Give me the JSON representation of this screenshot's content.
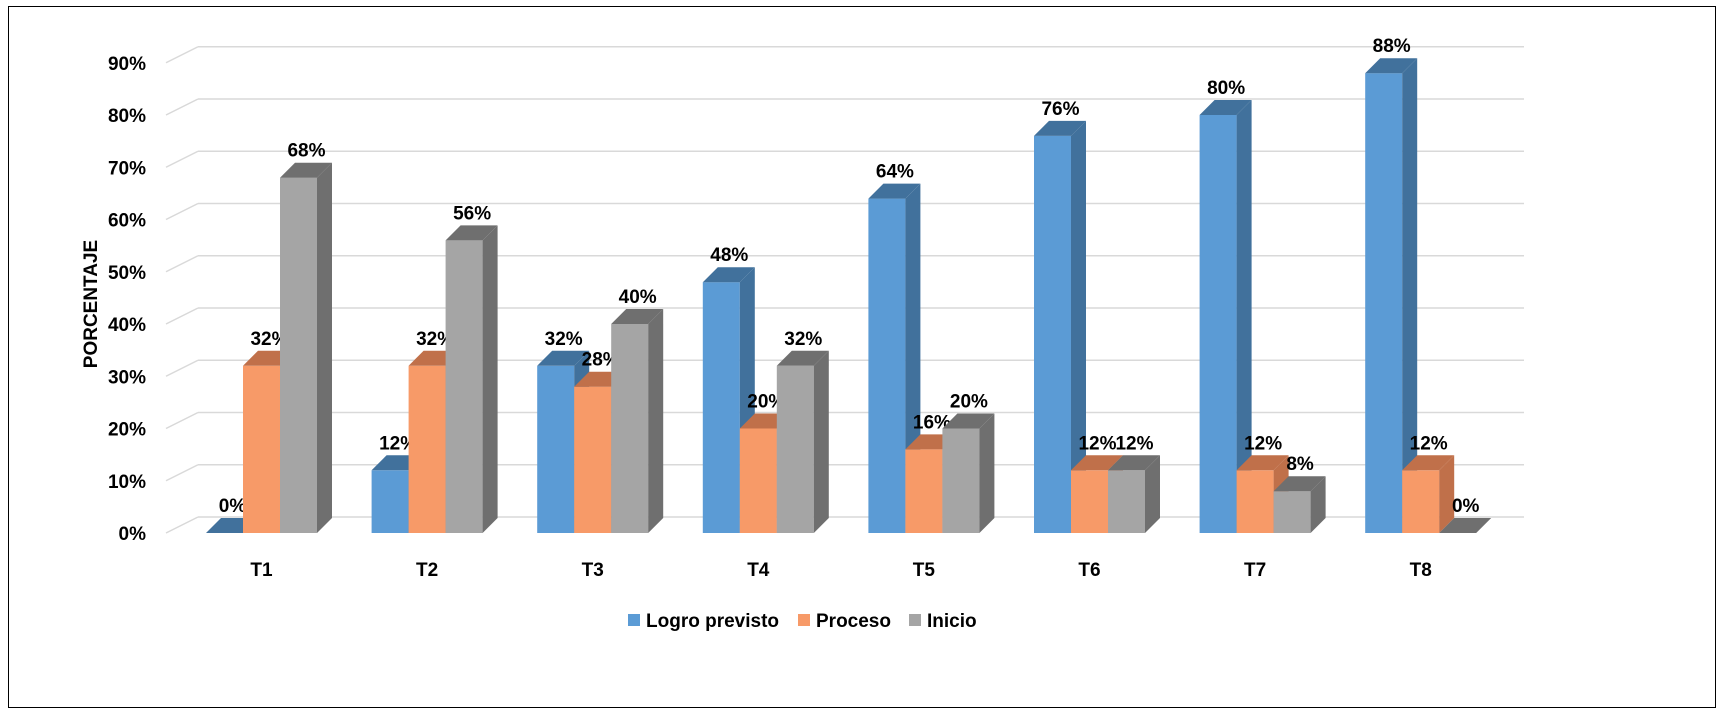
{
  "chart_data": {
    "type": "bar",
    "style": "3d-clustered-column",
    "categories": [
      "T1",
      "T2",
      "T3",
      "T4",
      "T5",
      "T6",
      "T7",
      "T8"
    ],
    "series": [
      {
        "name": "Logro previsto",
        "values": [
          0,
          12,
          32,
          48,
          64,
          76,
          80,
          88
        ],
        "color": "#5B9BD5",
        "side_color": "#41719C"
      },
      {
        "name": "Proceso",
        "values": [
          32,
          32,
          28,
          20,
          16,
          12,
          12,
          12
        ],
        "color": "#F79A68",
        "side_color": "#C0704A"
      },
      {
        "name": "Inicio",
        "values": [
          68,
          56,
          40,
          32,
          20,
          12,
          8,
          0
        ],
        "color": "#A5A5A5",
        "side_color": "#6F6F6F"
      }
    ],
    "data_labels": [
      [
        "0%",
        "12%",
        "32%",
        "48%",
        "64%",
        "76%",
        "80%",
        "88%"
      ],
      [
        "32%",
        "32%",
        "28%",
        "20%",
        "16%",
        "12%",
        "12%",
        "12%"
      ],
      [
        "68%",
        "56%",
        "40%",
        "32%",
        "20%",
        "12%",
        "8%",
        "0%"
      ]
    ],
    "ylabel": "PORCENTAJE",
    "xlabel": "",
    "ylim": [
      0,
      90
    ],
    "yticks": [
      0,
      10,
      20,
      30,
      40,
      50,
      60,
      70,
      80,
      90
    ],
    "ytick_labels": [
      "0%",
      "10%",
      "20%",
      "30%",
      "40%",
      "50%",
      "60%",
      "70%",
      "80%",
      "90%"
    ],
    "grid": true,
    "gridline_color": "#D9D9D9",
    "legend_position": "bottom"
  }
}
